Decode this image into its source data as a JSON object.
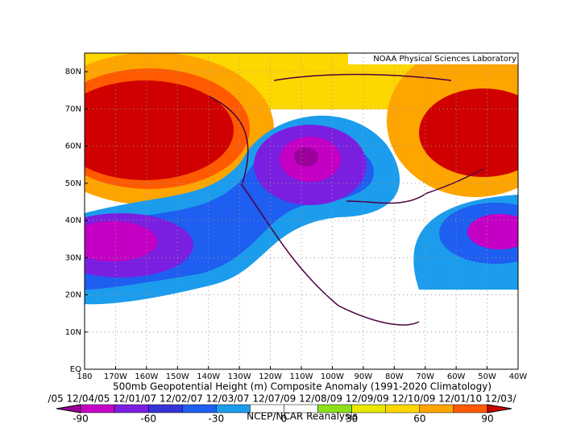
{
  "map": {
    "source": "NOAA Physical Sciences Laboratory",
    "title": "500mb Geopotential Height (m) Composite Anomaly (1991-2020 Climatology)",
    "dates": "/05 12/04/05 12/01/07 12/02/07 12/03/07 12/07/09 12/08/09 12/09/09 12/10/09 12/01/10 12/03/",
    "credit": "NCEP/NCAR Reanalysis",
    "lonlim": [
      -180,
      -40
    ],
    "latlim": [
      0,
      85
    ],
    "lonticks": [
      {
        "value": -180,
        "label": "180"
      },
      {
        "value": -170,
        "label": "170W"
      },
      {
        "value": -160,
        "label": "160W"
      },
      {
        "value": -150,
        "label": "150W"
      },
      {
        "value": -140,
        "label": "140W"
      },
      {
        "value": -130,
        "label": "130W"
      },
      {
        "value": -120,
        "label": "120W"
      },
      {
        "value": -110,
        "label": "110W"
      },
      {
        "value": -100,
        "label": "100W"
      },
      {
        "value": -90,
        "label": "90W"
      },
      {
        "value": -80,
        "label": "80W"
      },
      {
        "value": -70,
        "label": "70W"
      },
      {
        "value": -60,
        "label": "60W"
      },
      {
        "value": -50,
        "label": "50W"
      },
      {
        "value": -40,
        "label": "40W"
      }
    ],
    "latticks": [
      {
        "value": 0,
        "label": "EQ"
      },
      {
        "value": 10,
        "label": "10N"
      },
      {
        "value": 20,
        "label": "20N"
      },
      {
        "value": 30,
        "label": "30N"
      },
      {
        "value": 40,
        "label": "40N"
      },
      {
        "value": 50,
        "label": "50N"
      },
      {
        "value": 60,
        "label": "60N"
      },
      {
        "value": 70,
        "label": "70N"
      },
      {
        "value": 80,
        "label": "80N"
      }
    ],
    "grid": true,
    "colorbar": {
      "levels": [
        -90,
        -75,
        -60,
        -45,
        -30,
        -15,
        0,
        15,
        30,
        45,
        60,
        75,
        90
      ],
      "colors": [
        "#9b009b",
        "#c400c4",
        "#7a1fe0",
        "#3434d6",
        "#1e5ef0",
        "#1c9cec",
        "#ffffff",
        "#ffffff",
        "#8ee01a",
        "#e8e800",
        "#ffd700",
        "#ffa500",
        "#ff5a00",
        "#d00000"
      ],
      "ticks": [
        -90,
        -60,
        -30,
        0,
        30,
        60,
        90
      ]
    }
  }
}
